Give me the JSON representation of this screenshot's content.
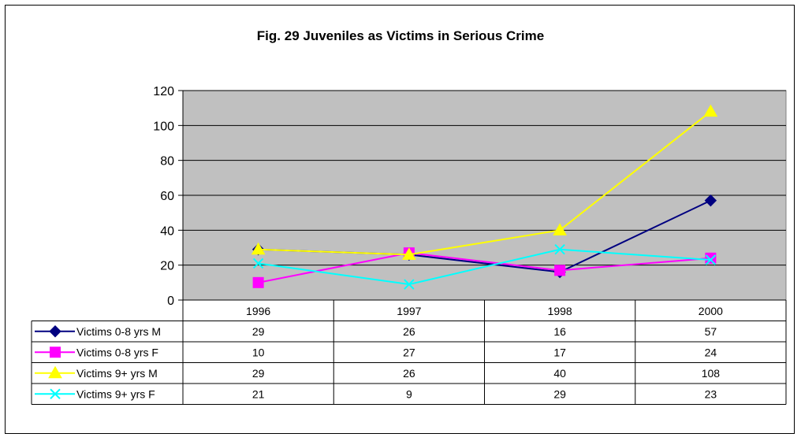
{
  "chart_data": {
    "type": "line",
    "title": "Fig. 29  Juveniles as Victims in Serious Crime",
    "categories": [
      "1996",
      "1997",
      "1998",
      "2000"
    ],
    "ylim": [
      0,
      120
    ],
    "yticks": [
      0,
      20,
      40,
      60,
      80,
      100,
      120
    ],
    "grid": true,
    "plot_background": "#C0C0C0",
    "legend_placement": "data-table-left",
    "series": [
      {
        "name": "Victims 0-8 yrs M",
        "values": [
          29,
          26,
          16,
          57
        ],
        "color": "#000080",
        "marker": "diamond"
      },
      {
        "name": "Victims 0-8 yrs F",
        "values": [
          10,
          27,
          17,
          24
        ],
        "color": "#FF00FF",
        "marker": "square"
      },
      {
        "name": "Victims 9+ yrs M",
        "values": [
          29,
          26,
          40,
          108
        ],
        "color": "#FFFF00",
        "marker": "triangle"
      },
      {
        "name": "Victims 9+ yrs F",
        "values": [
          21,
          9,
          29,
          23
        ],
        "color": "#00FFFF",
        "marker": "x"
      }
    ]
  }
}
